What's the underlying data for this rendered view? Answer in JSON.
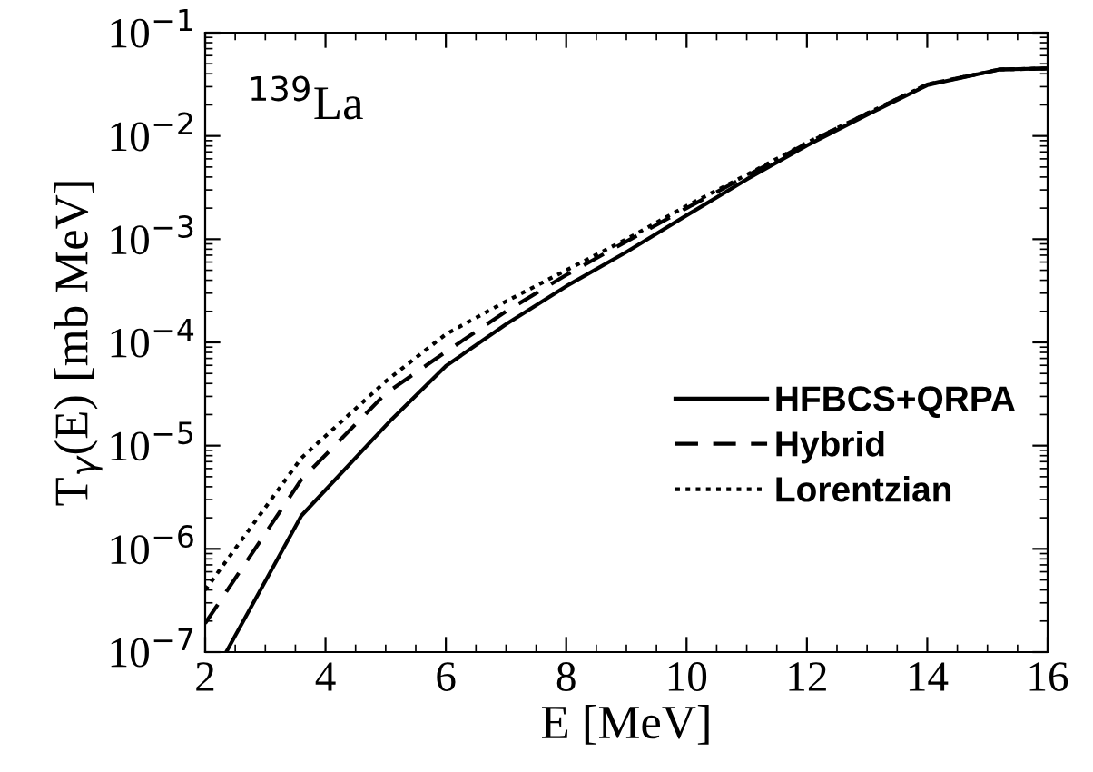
{
  "chart_data": {
    "type": "line",
    "xlabel": "E [MeV]",
    "ylabel": "T$_{γ}$(E) [mb MeV]",
    "annotations": [
      "$^{139}$La"
    ],
    "log": "y",
    "xlim": [
      2,
      16
    ],
    "ylim": [
      1e-07,
      0.1
    ],
    "xticks": [
      2,
      4,
      6,
      8,
      10,
      12,
      14,
      16
    ],
    "yticks": [
      {
        "value": 1e-07,
        "label": "10$^{−7}$"
      },
      {
        "value": 1e-06,
        "label": "10$^{−6}$"
      },
      {
        "value": 1e-05,
        "label": "10$^{−5}$"
      },
      {
        "value": 0.0001,
        "label": "10$^{−4}$"
      },
      {
        "value": 0.001,
        "label": "10$^{−3}$"
      },
      {
        "value": 0.01,
        "label": "10$^{−2}$"
      },
      {
        "value": 0.1,
        "label": "10$^{−1}$"
      }
    ],
    "legend": "bottom right",
    "grid": false,
    "series": [
      {
        "name": "HFBCS+QRPA",
        "color": "#000000",
        "line_style": "solid",
        "x": [
          2.35,
          3.6,
          5.1,
          6,
          7,
          8,
          9,
          10,
          11,
          12,
          13,
          14,
          15.2,
          16
        ],
        "values": [
          1e-07,
          2.1e-06,
          1.8e-05,
          5.9e-05,
          0.00015,
          0.00035,
          0.00075,
          0.0017,
          0.0038,
          0.0081,
          0.016,
          0.031,
          0.044,
          0.045
        ]
      },
      {
        "name": "Hybrid",
        "color": "#000000",
        "line_style": "dashed",
        "x": [
          2,
          3.6,
          5,
          6,
          7,
          8,
          9,
          10,
          11,
          12,
          13,
          14,
          15.2,
          16
        ],
        "values": [
          1.9e-07,
          4.7e-06,
          3.2e-05,
          8.1e-05,
          0.0002,
          0.00045,
          0.00095,
          0.002,
          0.0041,
          0.0085,
          0.0165,
          0.0315,
          0.044,
          0.045
        ]
      },
      {
        "name": "Lorentzian",
        "color": "#000000",
        "line_style": "dotted",
        "x": [
          2,
          3.6,
          5,
          6,
          7,
          8,
          9,
          10,
          11,
          12,
          13,
          14,
          15.2,
          16
        ],
        "values": [
          4e-07,
          7.6e-06,
          4.2e-05,
          0.00012,
          0.00025,
          0.0005,
          0.001,
          0.0021,
          0.0042,
          0.0086,
          0.0165,
          0.0315,
          0.044,
          0.045
        ]
      }
    ]
  }
}
